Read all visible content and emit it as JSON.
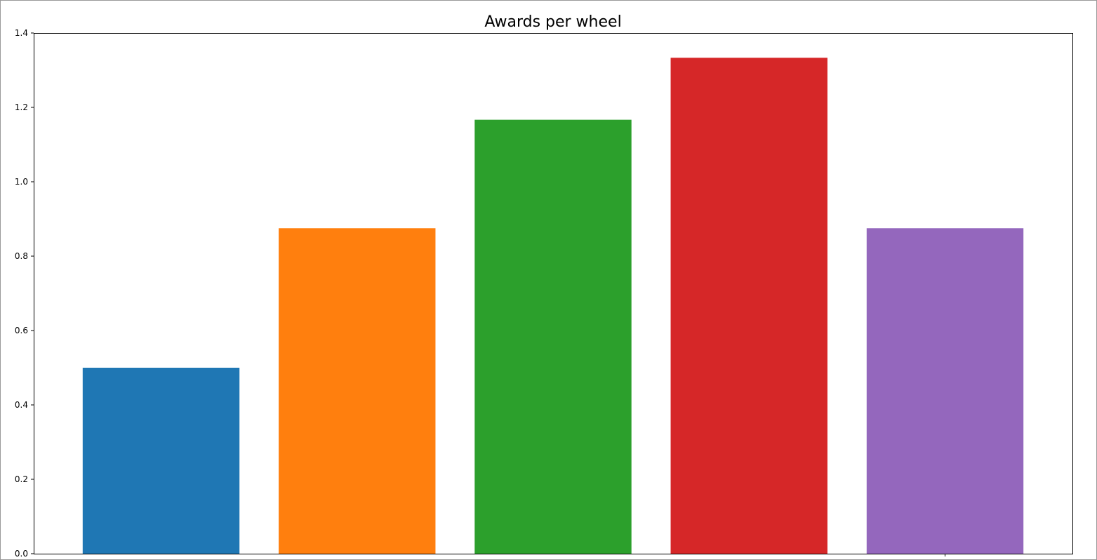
{
  "chart_data": {
    "type": "bar",
    "title": "Awards per wheel",
    "xlabel": "",
    "ylabel": "",
    "xlim": [
      -0.65,
      4.65
    ],
    "ylim": [
      0,
      1.4
    ],
    "yticks": [
      0.0,
      0.2,
      0.4,
      0.6,
      0.8,
      1.0,
      1.2,
      1.4
    ],
    "ytick_labels": [
      "0.0",
      "0.2",
      "0.4",
      "0.6",
      "0.8",
      "1.0",
      "1.2",
      "1.4"
    ],
    "xticks": [
      4
    ],
    "grid": false,
    "bar_width": 0.8,
    "values": [
      0.5,
      0.875,
      1.1667,
      1.3333,
      0.875
    ],
    "colors": [
      "#1f77b4",
      "#ff7f0e",
      "#2ca02c",
      "#d62728",
      "#9467bd"
    ]
  }
}
